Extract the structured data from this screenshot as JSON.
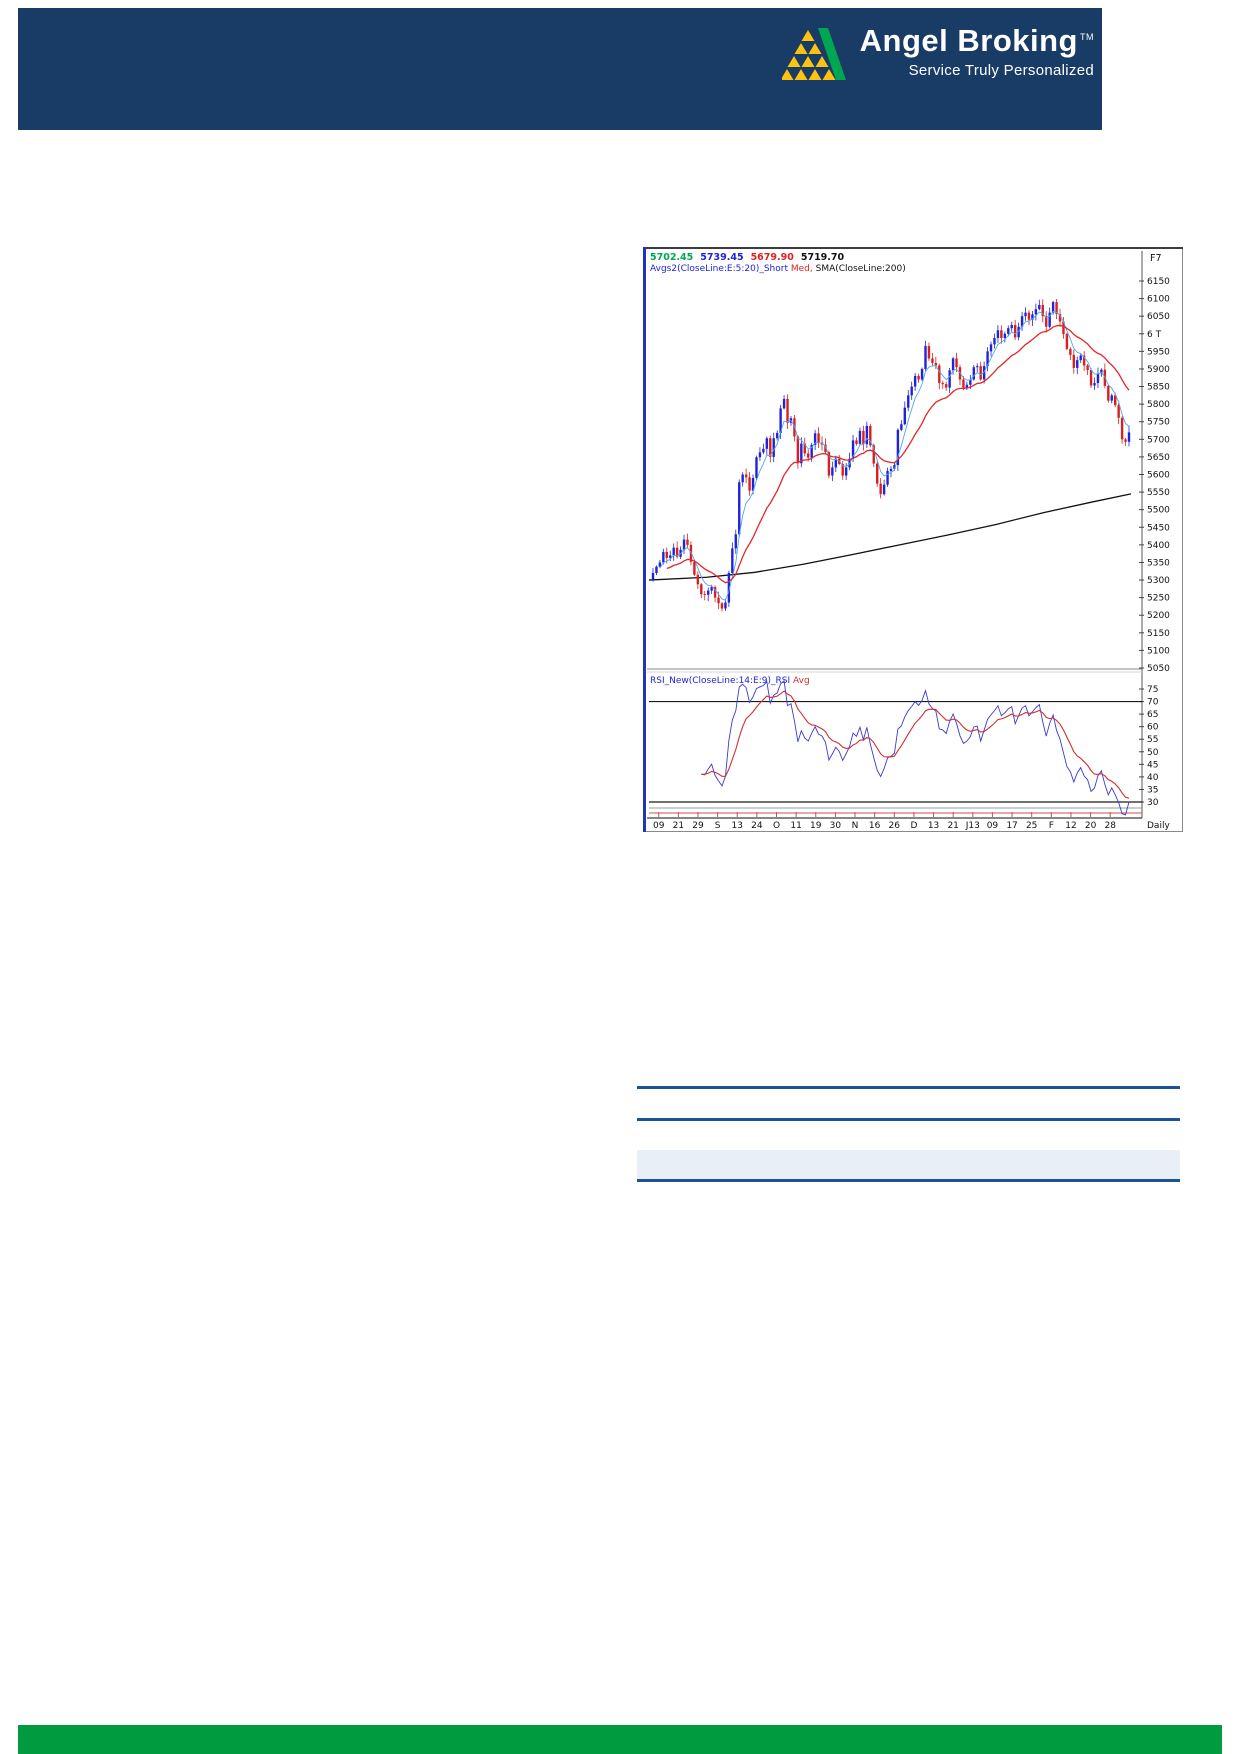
{
  "header": {
    "brand": "Angel Broking",
    "trademark": "TM",
    "tagline": "Service Truly Personalized",
    "band_color": "#183c66",
    "logo_green": "#00a651",
    "logo_yellow": "#ffc20e"
  },
  "footer": {
    "band_color": "#009b3e"
  },
  "table_rules": {
    "rule_color": "#1c5296",
    "band_color": "#e9eff6"
  },
  "chart_data": {
    "type": "candlestick",
    "function_key": "F7",
    "periodicity": "Daily",
    "quote_values": [
      {
        "text": "5702.45",
        "color": "#00a651"
      },
      {
        "text": "5739.45",
        "color": "#2024d8"
      },
      {
        "text": "5679.90",
        "color": "#e02020"
      },
      {
        "text": "5719.70",
        "color": "#111111"
      }
    ],
    "legend_parts": [
      {
        "text": "Avgs2(CloseLine:E:5:20)_Short ",
        "color": "#2024d8"
      },
      {
        "text": "Med,",
        "color": "#e02020"
      },
      {
        "text": " SMA(CloseLine:200)",
        "color": "#111111"
      }
    ],
    "rsi_header_parts": [
      {
        "text": "RSI_New(CloseLine:14:E:9)_RSI ",
        "color": "#2024d8"
      },
      {
        "text": "Avg",
        "color": "#d03030"
      }
    ],
    "ylim": [
      5050,
      6150
    ],
    "price_axis_labels": [
      "6150",
      "6100",
      "6050",
      "6 T",
      "5950",
      "5900",
      "5850",
      "5800",
      "5750",
      "5700",
      "5650",
      "5600",
      "5550",
      "5500",
      "5450",
      "5400",
      "5350",
      "5300",
      "5250",
      "5200",
      "5150",
      "5100",
      "5050"
    ],
    "rsi_axis_labels": [
      "75",
      "70",
      "65",
      "60",
      "55",
      "50",
      "45",
      "40",
      "35",
      "30"
    ],
    "rsi_reference_lines": [
      70,
      30
    ],
    "x_axis_labels": [
      "09",
      "21",
      "29",
      "S",
      "13",
      "24",
      "O",
      "11",
      "19",
      "30",
      "N",
      "16",
      "26",
      "D",
      "13",
      "21",
      "J13",
      "09",
      "17",
      "25",
      "F",
      "12",
      "20",
      "28"
    ],
    "closes": [
      5320,
      5338,
      5350,
      5380,
      5363,
      5370,
      5392,
      5366,
      5386,
      5415,
      5400,
      5352,
      5315,
      5288,
      5260,
      5258,
      5270,
      5280,
      5250,
      5234,
      5219,
      5236,
      5320,
      5390,
      5430,
      5578,
      5600,
      5592,
      5554,
      5590,
      5649,
      5663,
      5673,
      5703,
      5650,
      5703,
      5718,
      5788,
      5815,
      5747,
      5760,
      5708,
      5632,
      5688,
      5660,
      5648,
      5684,
      5717,
      5691,
      5685,
      5664,
      5597,
      5620,
      5645,
      5630,
      5597,
      5620,
      5645,
      5697,
      5687,
      5724,
      5686,
      5738,
      5683,
      5631,
      5574,
      5544,
      5571,
      5610,
      5616,
      5627,
      5727,
      5743,
      5790,
      5825,
      5850,
      5880,
      5870,
      5900,
      5965,
      5930,
      5917,
      5910,
      5860,
      5857,
      5847,
      5896,
      5930,
      5905,
      5870,
      5847,
      5855,
      5870,
      5905,
      5908,
      5870,
      5908,
      5950,
      5970,
      5988,
      6010,
      5988,
      6000,
      6016,
      6025,
      5990,
      6020,
      6050,
      6060,
      6040,
      6055,
      6070,
      6082,
      6050,
      6020,
      6060,
      6090,
      6056,
      6035,
      5999,
      5957,
      5940,
      5903,
      5925,
      5938,
      5910,
      5897,
      5853,
      5860,
      5887,
      5898,
      5852,
      5810,
      5825,
      5797,
      5761,
      5700,
      5693,
      5719.7
    ],
    "last_candle": {
      "open": 5702.45,
      "high": 5739.45,
      "low": 5679.9,
      "close": 5719.7
    },
    "sma200_anchors": [
      [
        0,
        5300
      ],
      [
        0.12,
        5308
      ],
      [
        0.22,
        5322
      ],
      [
        0.32,
        5345
      ],
      [
        0.42,
        5372
      ],
      [
        0.52,
        5400
      ],
      [
        0.62,
        5428
      ],
      [
        0.72,
        5458
      ],
      [
        0.82,
        5492
      ],
      [
        0.92,
        5522
      ],
      [
        1,
        5545
      ]
    ],
    "indicators": {
      "short_ma": "EMA 5 (blue)",
      "medium_ma": "EMA 20 (red)",
      "long_ma": "SMA 200 (black)",
      "oscillator": "RSI 14 (blue) with EMA 9 average (red)"
    },
    "colors": {
      "candle_up": "#2024d8",
      "candle_down": "#d82020",
      "short_ma": "#4fa8f0",
      "medium_ma": "#e22828",
      "long_ma": "#111111",
      "rsi_line": "#3a3ad0",
      "rsi_avg": "#d03030"
    }
  }
}
